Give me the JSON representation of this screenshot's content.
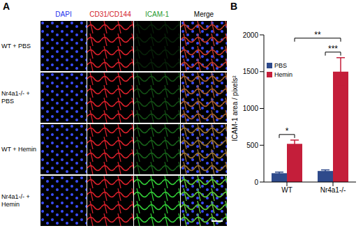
{
  "panel_a": {
    "label": "A",
    "columns": [
      "DAPI",
      "CD31/CD144",
      "ICAM-1",
      "Merge"
    ],
    "rows": [
      "WT + PBS",
      "Nr4a1-/- + PBS",
      "WT + Hemin",
      "Nr4a1-/- + Hemin"
    ]
  },
  "chart_data": {
    "panel_label": "B",
    "type": "bar",
    "categories": [
      "WT",
      "Nr4a1-/-"
    ],
    "series": [
      {
        "name": "PBS",
        "color": "#2e4a8b",
        "values": [
          120,
          150
        ],
        "errors": [
          15,
          15
        ]
      },
      {
        "name": "Hemin",
        "color": "#c41e3a",
        "values": [
          520,
          1500
        ],
        "errors": [
          50,
          190
        ]
      }
    ],
    "y_label": "ICAM-1 area / pixels²",
    "ylim": [
      0,
      2000
    ],
    "yticks": [
      0,
      500,
      1000,
      1500,
      2000
    ],
    "legend": "upper left",
    "annotations": [
      {
        "text": "*",
        "between": [
          [
            "WT",
            "PBS"
          ],
          [
            "WT",
            "Hemin"
          ]
        ]
      },
      {
        "text": "***",
        "between": [
          [
            "Nr4a1-/-",
            "PBS"
          ],
          [
            "Nr4a1-/-",
            "Hemin"
          ]
        ]
      },
      {
        "text": "**",
        "between": [
          [
            "WT",
            "Hemin"
          ],
          [
            "Nr4a1-/-",
            "Hemin"
          ]
        ]
      }
    ]
  }
}
